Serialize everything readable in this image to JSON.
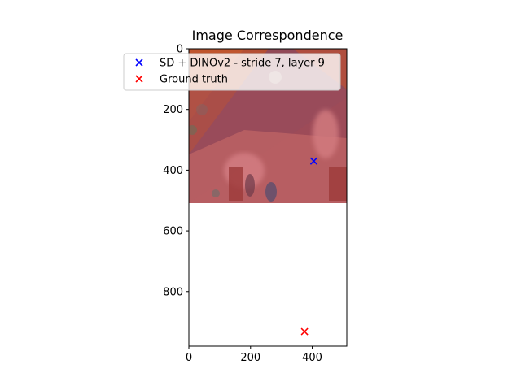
{
  "chart_data": {
    "type": "scatter",
    "title": "Image Correspondence",
    "xlabel": "",
    "ylabel": "",
    "xlim": [
      0,
      512
    ],
    "ylim": [
      0,
      980
    ],
    "y_inverted": true,
    "image_extent": {
      "x": [
        0,
        512
      ],
      "y": [
        0,
        512
      ]
    },
    "xticks": [
      0,
      200,
      400
    ],
    "yticks": [
      0,
      200,
      400,
      600,
      800
    ],
    "grid": false,
    "legend_position": "top-left",
    "series": [
      {
        "name": "SD + DINOv2 - stride 7, layer 9",
        "marker": "x",
        "color": "#0000ff",
        "points": [
          {
            "x": 405,
            "y": 370
          }
        ]
      },
      {
        "name": "Ground truth",
        "marker": "x",
        "color": "#ff0000",
        "points": [
          {
            "x": 375,
            "y": 932
          }
        ]
      }
    ]
  }
}
